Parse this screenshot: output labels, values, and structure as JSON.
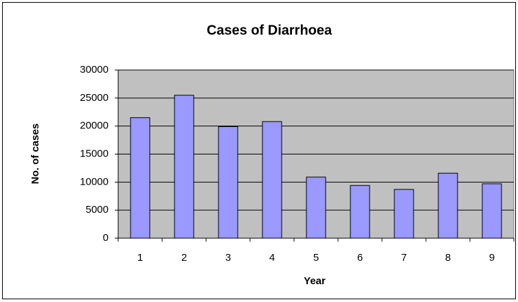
{
  "chart_data": {
    "type": "bar",
    "title": "Cases of Diarrhoea",
    "x_label": "Year",
    "y_label": "No. of cases",
    "categories": [
      "1",
      "2",
      "3",
      "4",
      "5",
      "6",
      "7",
      "8",
      "9"
    ],
    "values": [
      21500,
      25500,
      19900,
      20800,
      10900,
      9400,
      8700,
      11600,
      9700
    ],
    "color": "#9999ff",
    "ylim": [
      0,
      30000
    ],
    "yticks": [
      0,
      5000,
      10000,
      15000,
      20000,
      25000,
      30000
    ],
    "grid": true
  }
}
